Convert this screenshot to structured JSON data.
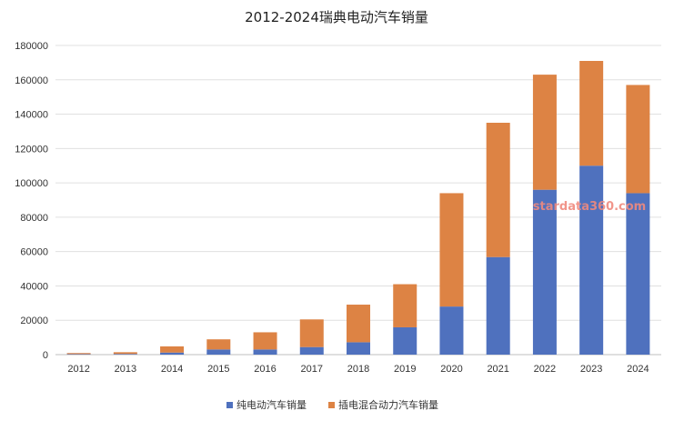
{
  "chart_data": {
    "type": "bar",
    "stacked": true,
    "title": "2012-2024瑞典电动汽车销量",
    "categories": [
      "2012",
      "2013",
      "2014",
      "2015",
      "2016",
      "2017",
      "2018",
      "2019",
      "2020",
      "2021",
      "2022",
      "2023",
      "2024"
    ],
    "series": [
      {
        "name": "纯电动汽车销量",
        "color": "#4f71be",
        "values": [
          300,
          400,
          1200,
          3000,
          3000,
          4400,
          7200,
          15900,
          28000,
          56800,
          96000,
          110000,
          94000
        ]
      },
      {
        "name": "插电混合动力汽车销量",
        "color": "#dd8344",
        "values": [
          600,
          1000,
          3600,
          5900,
          10000,
          16100,
          21900,
          25100,
          66000,
          78200,
          67000,
          61000,
          63000
        ]
      }
    ],
    "ylim": [
      0,
      180000
    ],
    "yticks": [
      "0",
      "20000",
      "40000",
      "60000",
      "80000",
      "100000",
      "120000",
      "140000",
      "160000",
      "180000"
    ],
    "grid": true,
    "legend_position": "bottom",
    "watermark": "stardata360.com"
  }
}
